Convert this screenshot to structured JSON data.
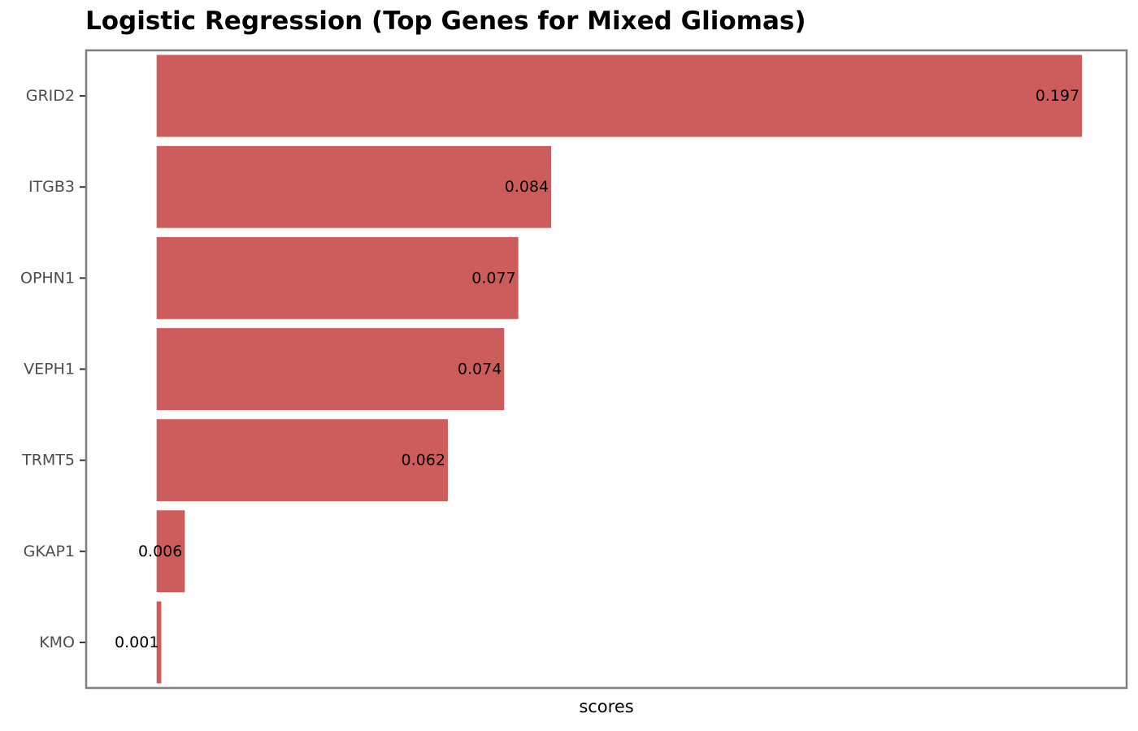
{
  "chart_data": {
    "type": "bar",
    "orientation": "horizontal",
    "title": "Logistic Regression (Top Genes for Mixed Gliomas)",
    "xlabel": "scores",
    "ylabel": "",
    "categories": [
      "GRID2",
      "ITGB3",
      "OPHN1",
      "VEPH1",
      "TRMT5",
      "GKAP1",
      "KMO"
    ],
    "values": [
      0.197,
      0.084,
      0.077,
      0.074,
      0.062,
      0.006,
      0.001
    ],
    "value_labels": [
      "0.197",
      "0.084",
      "0.077",
      "0.074",
      "0.062",
      "0.006",
      "0.001"
    ],
    "xlim": [
      -0.015,
      0.2065
    ],
    "bar_color": "#cd5c5c",
    "panel_border_color": "#7f7f7f",
    "grid": false,
    "legend": "none"
  }
}
